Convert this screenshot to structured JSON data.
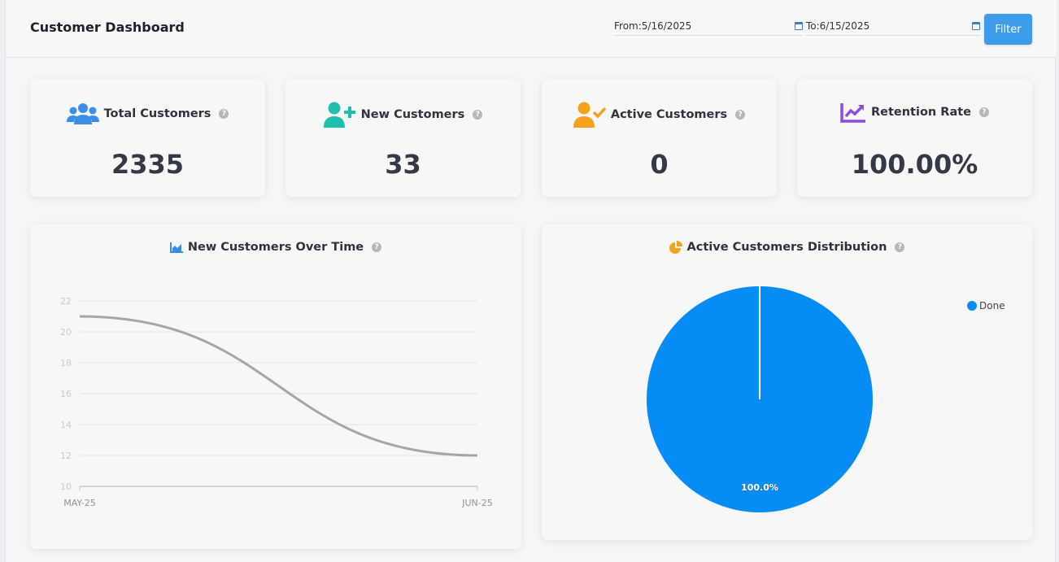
{
  "header": {
    "title": "Customer Dashboard",
    "from_label": "From:5/16/2025",
    "to_label": "To:6/15/2025",
    "filter_label": "Filter"
  },
  "kpis": [
    {
      "title": "Total Customers",
      "value": "2335",
      "icon": "users-icon",
      "color": "#3b8ee8"
    },
    {
      "title": "New Customers",
      "value": "33",
      "icon": "user-plus-icon",
      "color": "#1fbfb0"
    },
    {
      "title": "Active Customers",
      "value": "0",
      "icon": "user-check-icon",
      "color": "#f5a21a"
    },
    {
      "title": "Retention Rate",
      "value": "100.00%",
      "icon": "chart-line-icon",
      "color": "#8b4fe0"
    }
  ],
  "line_panel": {
    "title": "New Customers Over Time",
    "icon": "area-chart-icon",
    "icon_color": "#3b8ee8"
  },
  "pie_panel": {
    "title": "Active Customers Distribution",
    "icon": "pie-chart-icon",
    "icon_color": "#f5a21a"
  },
  "help_glyph": "?",
  "chart_data": [
    {
      "type": "line",
      "title": "New Customers Over Time",
      "categories": [
        "MAY-25",
        "JUN-25"
      ],
      "series": [
        {
          "values": [
            21,
            12
          ]
        }
      ],
      "ylim": [
        10,
        22
      ],
      "yticks": [
        "10",
        "12",
        "14",
        "16",
        "18",
        "20",
        "22"
      ],
      "grid": true,
      "line_color": "#a6a6a6"
    },
    {
      "type": "pie",
      "title": "Active Customers Distribution",
      "labels": [
        "Done"
      ],
      "values": [
        100
      ],
      "data_labels": [
        "100.0%"
      ],
      "colors": [
        "#068cf5"
      ],
      "legend": "top-right"
    }
  ]
}
